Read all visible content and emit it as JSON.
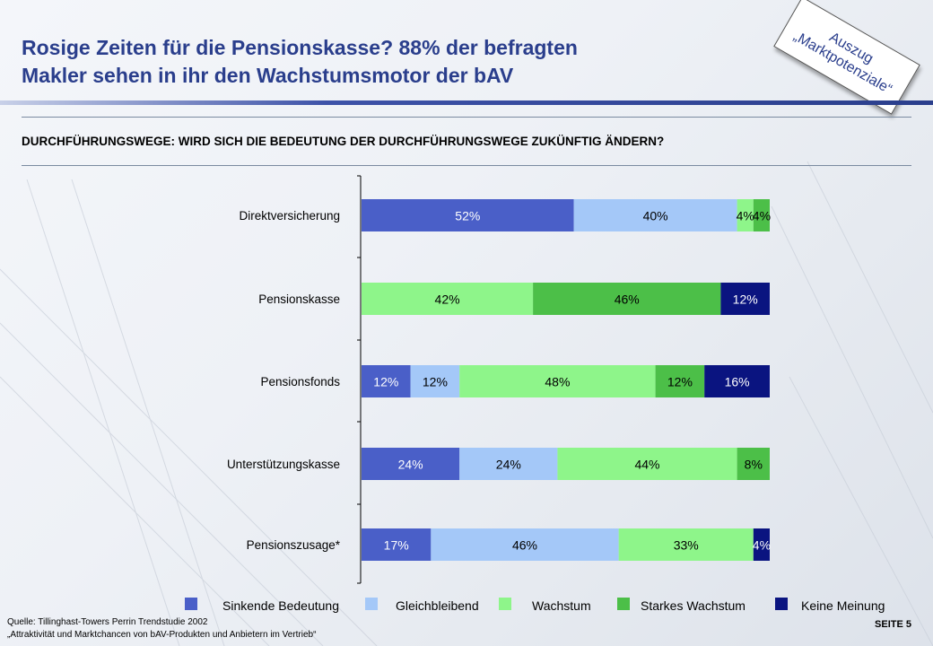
{
  "header": {
    "title_line1": "Rosige Zeiten für die Pensionskasse? 88% der befragten",
    "title_line2": "Makler sehen in ihr den Wachstumsmotor der bAV",
    "subtitle": "DURCHFÜHRUNGSWEGE: WIRD SICH DIE BEDEUTUNG DER DURCHFÜHRUNGSWEGE ZUKÜNFTIG ÄNDERN?"
  },
  "stamp": {
    "line1": "Auszug",
    "line2": "„Marktpotenziale“"
  },
  "footer": {
    "source_line1": "Quelle: Tillinghast-Towers Perrin Trendstudie 2002",
    "source_line2": "„Attraktivität und Marktchancen von bAV-Produkten und Anbietern im Vertrieb“",
    "page_label": "SEITE 5"
  },
  "chart_data": {
    "type": "bar",
    "orientation": "horizontal",
    "stacked": true,
    "value_unit": "%",
    "categories": [
      "Direktversicherung",
      "Pensionskasse",
      "Pensionsfonds",
      "Unterstützungskasse",
      "Pensionszusage*"
    ],
    "series": [
      {
        "name": "Sinkende Bedeutung",
        "color": "#4a5fc8",
        "label_color": "#ffffff",
        "values": [
          52,
          0,
          12,
          24,
          17
        ]
      },
      {
        "name": "Gleichbleibend",
        "color": "#a4c8f8",
        "label_color": "#000000",
        "values": [
          40,
          0,
          12,
          24,
          46
        ]
      },
      {
        "name": "Wachstum",
        "color": "#8ef58a",
        "label_color": "#000000",
        "values": [
          4,
          42,
          48,
          44,
          33
        ]
      },
      {
        "name": "Starkes Wachstum",
        "color": "#4cbf48",
        "label_color": "#000000",
        "values": [
          4,
          46,
          12,
          8,
          0
        ]
      },
      {
        "name": "Keine Meinung",
        "color": "#0a1480",
        "label_color": "#ffffff",
        "values": [
          0,
          12,
          16,
          0,
          4
        ]
      }
    ],
    "xlim": [
      0,
      100
    ],
    "grid": false,
    "legend_position": "bottom"
  }
}
